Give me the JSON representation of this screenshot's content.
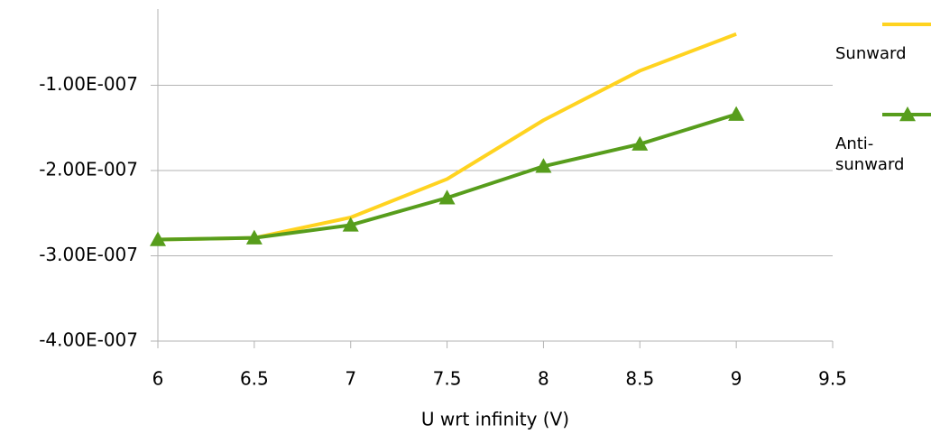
{
  "chart_data": {
    "type": "line",
    "xlabel": "U wrt infinity (V)",
    "x": [
      6,
      6.5,
      7,
      7.5,
      8,
      8.5,
      9
    ],
    "series": [
      {
        "name": "Sunward",
        "color": "#ffd320",
        "marker": "none",
        "values": [
          -2.81e-07,
          -2.79e-07,
          -2.55e-07,
          -2.1e-07,
          -1.41e-07,
          -8.3e-08,
          -4e-08
        ]
      },
      {
        "name": "Anti-sunward",
        "color": "#579d1c",
        "marker": "triangle",
        "values": [
          -2.81e-07,
          -2.79e-07,
          -2.64e-07,
          -2.32e-07,
          -1.95e-07,
          -1.69e-07,
          -1.34e-07
        ]
      }
    ],
    "xlim": [
      6,
      9.5
    ],
    "xticks": [
      6,
      6.5,
      7,
      7.5,
      8,
      8.5,
      9,
      9.5
    ],
    "ylim": [
      -4e-07,
      0
    ],
    "yticks": [
      {
        "value": -4e-07,
        "label": "-4.00E-007"
      },
      {
        "value": -3e-07,
        "label": "-3.00E-007"
      },
      {
        "value": -2e-07,
        "label": "-2.00E-007"
      },
      {
        "value": -1e-07,
        "label": "-1.00E-007"
      }
    ],
    "grid": true,
    "legend": "right"
  }
}
